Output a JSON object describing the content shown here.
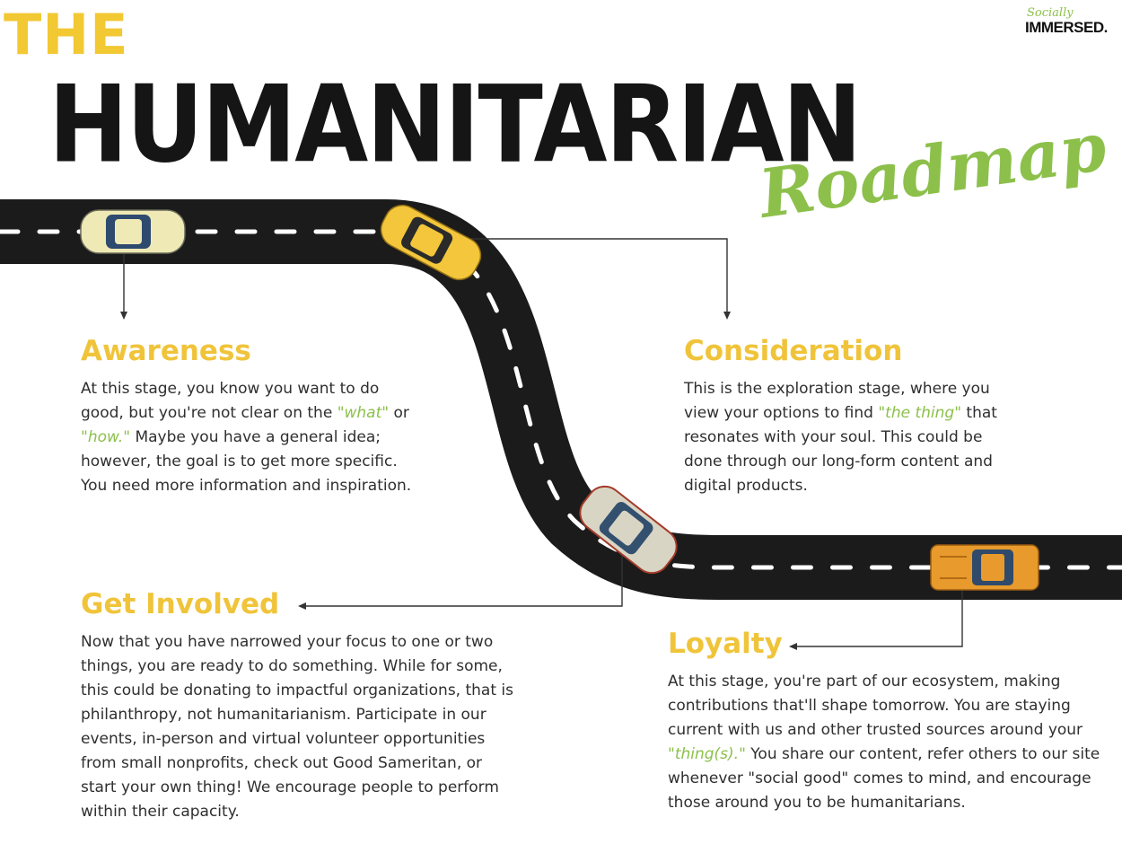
{
  "title": {
    "the": "THE",
    "main": "HUMANITARIAN",
    "sub": "Roadmap"
  },
  "logo": {
    "top": "Socially",
    "bottom": "IMMERSED."
  },
  "stages": {
    "awareness": {
      "heading": "Awareness",
      "p1": "At this stage, you know you want to do good, but you're not clear on the ",
      "h1": "\"what\"",
      "p2": " or ",
      "h2": "\"how.\"",
      "p3": " Maybe you have a general idea; however, the goal is to get more specific. You need more information and inspiration."
    },
    "consideration": {
      "heading": "Consideration",
      "p1": "This is the exploration stage, where you view your options to find ",
      "h1": "\"the thing\"",
      "p2": " that resonates with your soul. This could be done through our long-form content and digital products."
    },
    "get_involved": {
      "heading": "Get Involved",
      "text": "Now that you have narrowed your focus to one or two things, you are ready to do something. While for some, this could be donating to impactful organizations, that is philanthropy, not humanitarianism. Participate in our events, in-person and virtual volunteer opportunities from small nonprofits, check out Good Sameritan, or start your own thing! We encourage people to perform within their capacity."
    },
    "loyalty": {
      "heading": "Loyalty",
      "p1": "At this stage, you're part of our ecosystem, making contributions that'll shape tomorrow. You are staying current with us and other trusted sources around your ",
      "h1": "\"thing(s).\"",
      "p2": " You share our content, refer others to our site whenever \"social good\" comes to mind, and encourage those around you to be humanitarians."
    }
  },
  "colors": {
    "road": "#1b1b1b",
    "title_yellow": "#f2c833",
    "heading_yellow": "#f0c43a",
    "accent_green": "#8cc04b",
    "car_cream": "#efe9b5",
    "car_yellow": "#f3c63b",
    "car_silver": "#d9d5c4",
    "car_orange": "#e89a2c"
  }
}
